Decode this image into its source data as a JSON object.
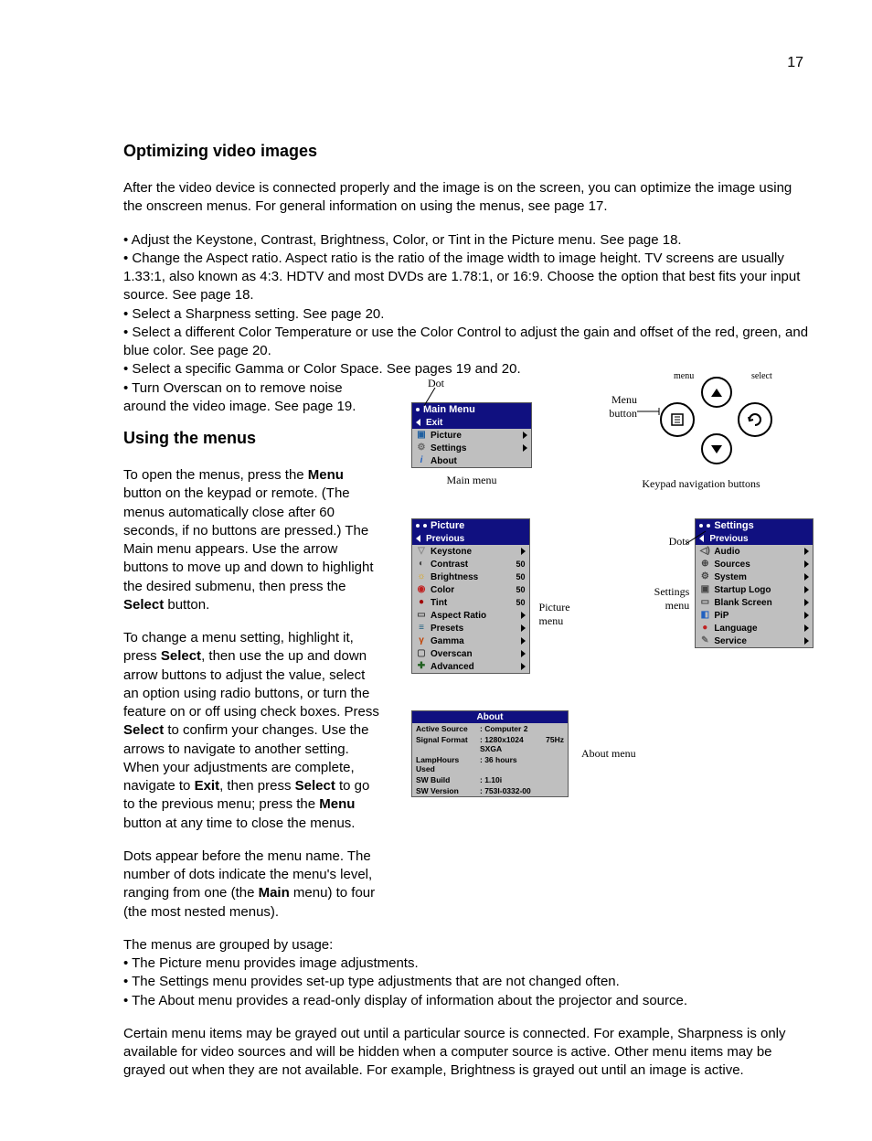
{
  "page_number": "17",
  "h1": "Optimizing video images",
  "intro": "After the video device is connected properly and the image is on the screen, you can optimize the image using the onscreen menus. For general information on using the menus, see page 17.",
  "bullets_a": [
    "• Adjust the Keystone, Contrast, Brightness, Color, or Tint in the Picture menu. See page 18.",
    "• Change the Aspect ratio. Aspect ratio is the ratio of the image width to image height. TV screens are usually 1.33:1, also known as 4:3. HDTV and most DVDs are 1.78:1, or 16:9. Choose the option that best fits your input source. See page 18.",
    "• Select a Sharpness setting. See page 20.",
    "• Select a different Color Temperature or use the Color Control to adjust the gain and offset of the red, green, and blue color. See page 20.",
    "• Select a specific Gamma or Color Space. See pages 19 and 20.",
    "• Turn Overscan on to remove noise",
    "around the video image. See page 19."
  ],
  "h2": "Using the menus",
  "p1_pre": "To open the menus, press the ",
  "p1_bold1": "Menu",
  "p1_mid": " button on the keypad or remote. (The menus automatically close after 60 seconds, if no buttons are pressed.) The Main menu appears. Use the arrow buttons to move up and down to highlight the desired submenu, then press the ",
  "p1_bold2": "Select",
  "p1_post": " button.",
  "p2_pre": "To change a menu setting, highlight it, press ",
  "p2_b1": "Select",
  "p2_m1": ", then use the up and down arrow buttons to adjust the value, select an option using radio buttons, or turn the feature on or off using check boxes. Press ",
  "p2_b2": "Select",
  "p2_m2": " to confirm your changes. Use the arrows to navigate to another setting. When your adjustments are complete, navigate to ",
  "p2_b3": "Exit",
  "p2_m3": ", then press ",
  "p2_b4": "Select",
  "p2_m4": " to go to the previous menu; press the ",
  "p2_b5": "Menu",
  "p2_m5": " button at any time to close the menus.",
  "p3_pre": "Dots appear before the menu name. The number of dots indicate the menu's level, ranging from one (the ",
  "p3_b1": "Main",
  "p3_post": " menu) to four (the most nested menus).",
  "p4": "The menus are grouped by usage:",
  "bullets_b": [
    "• The Picture menu provides image adjustments.",
    "• The Settings menu provides set-up type adjustments that are not changed often.",
    "• The About menu provides a read-only display of information about the projector and source."
  ],
  "p5": "Certain menu items may be grayed out until a particular source is connected. For example, Sharpness is only available for video sources and will be hidden when a computer source is active. Other menu items may be grayed out when they are not available. For example, Brightness is grayed out until an image is active.",
  "fig_dot": "Dot",
  "main_menu": {
    "title": "Main Menu",
    "exit": "Exit",
    "items": [
      "Picture",
      "Settings",
      "About"
    ],
    "caption": "Main menu"
  },
  "kpad": {
    "menu_lbl": "menu",
    "select_lbl": "select",
    "menu_btn": "Menu button",
    "caption": "Keypad navigation buttons"
  },
  "picture_menu": {
    "title": "Picture",
    "prev": "Previous",
    "rows": [
      {
        "lbl": "Keystone",
        "val": "",
        "arr": true,
        "ico": "▽",
        "c": "#888"
      },
      {
        "lbl": "Contrast",
        "val": "50",
        "arr": false,
        "ico": "◐",
        "c": "#444"
      },
      {
        "lbl": "Brightness",
        "val": "50",
        "arr": false,
        "ico": "☼",
        "c": "#e0a000"
      },
      {
        "lbl": "Color",
        "val": "50",
        "arr": false,
        "ico": "◉",
        "c": "#c02020"
      },
      {
        "lbl": "Tint",
        "val": "50",
        "arr": false,
        "ico": "●",
        "c": "#a00000"
      },
      {
        "lbl": "Aspect Ratio",
        "val": "",
        "arr": true,
        "ico": "▭",
        "c": "#444"
      },
      {
        "lbl": "Presets",
        "val": "",
        "arr": true,
        "ico": "≡",
        "c": "#206080"
      },
      {
        "lbl": "Gamma",
        "val": "",
        "arr": true,
        "ico": "γ",
        "c": "#c04000"
      },
      {
        "lbl": "Overscan",
        "val": "",
        "arr": true,
        "ico": "▢",
        "c": "#444"
      },
      {
        "lbl": "Advanced",
        "val": "",
        "arr": true,
        "ico": "✚",
        "c": "#206020"
      }
    ],
    "caption": "Picture menu"
  },
  "settings_menu": {
    "title": "Settings",
    "prev": "Previous",
    "rows": [
      {
        "lbl": "Audio",
        "arr": true,
        "ico": "◁)",
        "c": "#444"
      },
      {
        "lbl": "Sources",
        "arr": true,
        "ico": "⊕",
        "c": "#444"
      },
      {
        "lbl": "System",
        "arr": true,
        "ico": "⚙",
        "c": "#444"
      },
      {
        "lbl": "Startup Logo",
        "arr": true,
        "ico": "▣",
        "c": "#444"
      },
      {
        "lbl": "Blank Screen",
        "arr": true,
        "ico": "▭",
        "c": "#444"
      },
      {
        "lbl": "PiP",
        "arr": true,
        "ico": "◧",
        "c": "#2060c0"
      },
      {
        "lbl": "Language",
        "arr": true,
        "ico": "●",
        "c": "#c02020"
      },
      {
        "lbl": "Service",
        "arr": true,
        "ico": "✎",
        "c": "#666"
      }
    ],
    "dots_lbl": "Dots",
    "caption": "Settings menu"
  },
  "about": {
    "title": "About",
    "rows": [
      {
        "k": "Active Source",
        "v": ": Computer 2",
        "e": ""
      },
      {
        "k": "Signal Format",
        "v": ": 1280x1024 SXGA",
        "e": "75Hz"
      },
      {
        "k": "LampHours Used",
        "v": ": 36 hours",
        "e": ""
      },
      {
        "k": "SW Build",
        "v": ": 1.10i",
        "e": ""
      },
      {
        "k": "SW Version",
        "v": ": 753l-0332-00",
        "e": ""
      }
    ],
    "caption": "About menu"
  }
}
